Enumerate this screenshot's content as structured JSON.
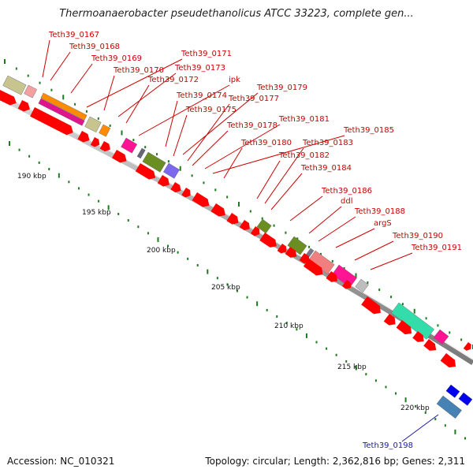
{
  "title": "Thermoanaerobacter pseudethanolicus ATCC 33223, complete gen...",
  "footer": {
    "accession": "Accession: NC_010321",
    "summary": "Topology: circular; Length: 2,362,816 bp; Genes: 2,311"
  },
  "colors": {
    "label_red": "#cc0000",
    "label_blue": "#1a1aa8",
    "tick_green": "#1f7a1f",
    "cds_red": "#ff0000",
    "backbone": "#9a9a9a"
  },
  "ruler": [
    "190 kbp",
    "195 kbp",
    "200 kbp",
    "205 kbp",
    "210 kbp",
    "215 kbp",
    "220 kbp"
  ],
  "gene_labels": [
    "Teth39_0167",
    "Teth39_0168",
    "Teth39_0169",
    "Teth39_0171",
    "Teth39_0170",
    "Teth39_0173",
    "Teth39_0172",
    "ipk",
    "Teth39_0179",
    "Teth39_0174",
    "Teth39_0177",
    "Teth39_0175",
    "Teth39_0181",
    "Teth39_0178",
    "Teth39_0185",
    "Teth39_0180",
    "Teth39_0183",
    "Teth39_0182",
    "Teth39_0184",
    "Teth39_0186",
    "ddl",
    "Teth39_0188",
    "argS",
    "Teth39_0190",
    "Teth39_0191"
  ],
  "blue_label": "Teth39_0198"
}
